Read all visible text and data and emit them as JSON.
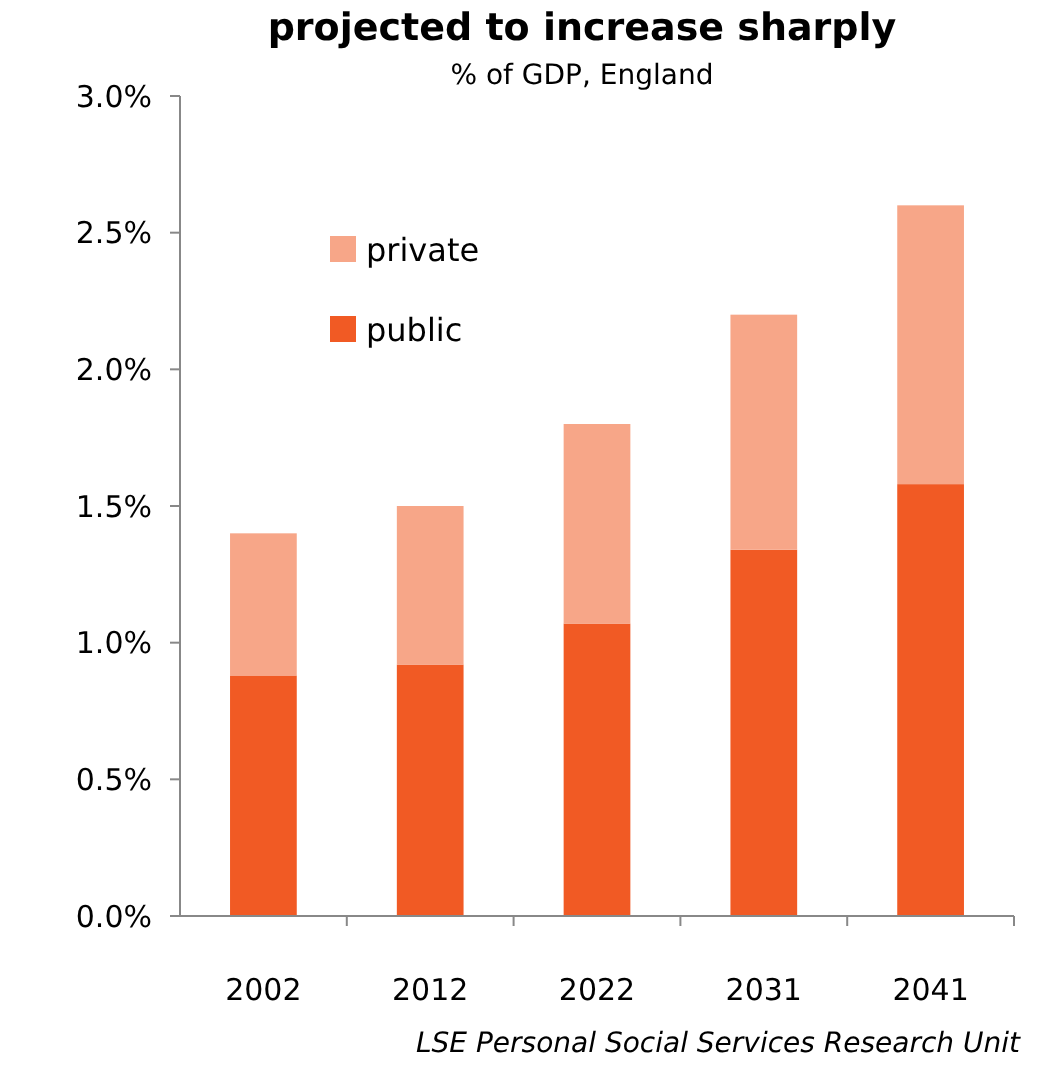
{
  "chart_data": {
    "type": "bar",
    "title": "projected to increase sharply",
    "subtitle": "% of GDP, England",
    "categories": [
      "2002",
      "2012",
      "2022",
      "2031",
      "2041"
    ],
    "stacked": true,
    "series": [
      {
        "name": "public",
        "color": "#f15a24",
        "values": [
          0.88,
          0.92,
          1.07,
          1.34,
          1.58
        ]
      },
      {
        "name": "private",
        "color": "#f7a688",
        "values": [
          0.52,
          0.58,
          0.73,
          0.86,
          1.02
        ]
      }
    ],
    "ylim": [
      0,
      3
    ],
    "yticks": [
      {
        "value": 0,
        "label": "0.0%"
      },
      {
        "value": 0.5,
        "label": "0.5%"
      },
      {
        "value": 1,
        "label": "1.0%"
      },
      {
        "value": 1.5,
        "label": "1.5%"
      },
      {
        "value": 2,
        "label": "2.0%"
      },
      {
        "value": 2.5,
        "label": "2.5%"
      },
      {
        "value": 3,
        "label": "3.0%"
      }
    ],
    "legend": "top left",
    "grid": false,
    "annotations": [
      "LSE Personal Social Services Research Unit"
    ]
  }
}
